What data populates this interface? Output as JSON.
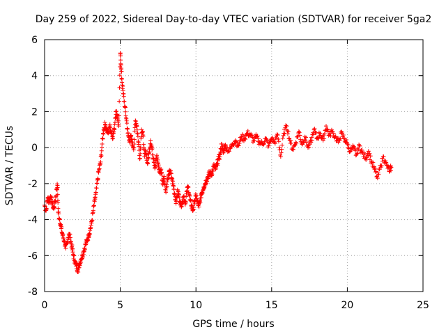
{
  "chart_data": {
    "type": "scatter",
    "title": "Day 259 of 2022, Sidereal Day-to-day VTEC variation (SDTVAR) for receiver 5ga2",
    "xlabel": "GPS time / hours",
    "ylabel": "SDTVAR / TECUs",
    "xlim": [
      0,
      25
    ],
    "ylim": [
      -8,
      6
    ],
    "xticks": [
      "0",
      "5",
      "10",
      "15",
      "20",
      "25"
    ],
    "yticks": [
      "-8",
      "-6",
      "-4",
      "-2",
      "0",
      "2",
      "4",
      "6"
    ],
    "grid": true,
    "marker": "plus",
    "color": "#ff0000",
    "series": [
      {
        "name": "SDTVAR",
        "x": [
          0.0,
          0.1,
          0.2,
          0.3,
          0.4,
          0.5,
          0.6,
          0.7,
          0.8,
          0.85,
          0.9,
          1.0,
          1.1,
          1.2,
          1.3,
          1.4,
          1.5,
          1.6,
          1.7,
          1.8,
          1.9,
          2.0,
          2.1,
          2.2,
          2.3,
          2.4,
          2.5,
          2.6,
          2.7,
          2.8,
          2.9,
          3.0,
          3.1,
          3.2,
          3.3,
          3.4,
          3.5,
          3.6,
          3.7,
          3.8,
          3.9,
          4.0,
          4.1,
          4.2,
          4.3,
          4.4,
          4.5,
          4.6,
          4.7,
          4.8,
          4.9,
          5.0,
          5.05,
          5.1,
          5.2,
          5.3,
          5.4,
          5.5,
          5.6,
          5.7,
          5.8,
          5.9,
          6.0,
          6.1,
          6.2,
          6.3,
          6.4,
          6.5,
          6.6,
          6.7,
          6.8,
          6.9,
          7.0,
          7.1,
          7.2,
          7.3,
          7.4,
          7.5,
          7.6,
          7.7,
          7.8,
          7.9,
          8.0,
          8.1,
          8.2,
          8.3,
          8.4,
          8.5,
          8.6,
          8.7,
          8.8,
          8.9,
          9.0,
          9.1,
          9.2,
          9.3,
          9.4,
          9.5,
          9.6,
          9.7,
          9.8,
          9.9,
          10.0,
          10.1,
          10.2,
          10.3,
          10.4,
          10.5,
          10.6,
          10.7,
          10.8,
          10.9,
          11.0,
          11.1,
          11.2,
          11.3,
          11.4,
          11.5,
          11.6,
          11.7,
          11.8,
          11.9,
          12.0,
          12.2,
          12.4,
          12.6,
          12.8,
          13.0,
          13.2,
          13.4,
          13.6,
          13.8,
          14.0,
          14.2,
          14.4,
          14.6,
          14.8,
          15.0,
          15.2,
          15.4,
          15.6,
          15.8,
          16.0,
          16.2,
          16.4,
          16.6,
          16.8,
          17.0,
          17.2,
          17.4,
          17.6,
          17.8,
          18.0,
          18.2,
          18.4,
          18.6,
          18.8,
          19.0,
          19.2,
          19.4,
          19.6,
          19.8,
          20.0,
          20.2,
          20.4,
          20.6,
          20.8,
          21.0,
          21.2,
          21.4,
          21.6,
          21.8,
          22.0,
          22.2,
          22.4,
          22.6,
          22.8,
          22.9
        ],
        "y": [
          -3.2,
          -3.5,
          -2.8,
          -3.0,
          -2.7,
          -3.1,
          -3.4,
          -3.0,
          -2.3,
          -2.1,
          -3.6,
          -4.0,
          -4.5,
          -4.9,
          -5.2,
          -5.6,
          -5.3,
          -4.8,
          -5.0,
          -5.5,
          -6.0,
          -6.3,
          -6.6,
          -6.8,
          -6.5,
          -6.2,
          -6.0,
          -5.7,
          -5.4,
          -5.2,
          -4.9,
          -4.6,
          -4.2,
          -3.6,
          -3.0,
          -2.5,
          -1.8,
          -1.2,
          -0.8,
          0.2,
          1.0,
          1.3,
          1.0,
          0.8,
          1.2,
          0.9,
          0.6,
          1.0,
          2.0,
          1.8,
          1.2,
          5.2,
          4.6,
          3.8,
          3.0,
          2.3,
          1.6,
          0.8,
          0.4,
          0.6,
          0.2,
          0.0,
          1.5,
          1.2,
          0.3,
          -0.6,
          1.0,
          0.7,
          -0.5,
          -0.2,
          -0.9,
          -0.3,
          0.4,
          -0.1,
          -0.6,
          -1.1,
          -0.5,
          -0.9,
          -1.4,
          -1.2,
          -2.0,
          -1.6,
          -2.4,
          -1.9,
          -1.5,
          -1.3,
          -1.7,
          -2.1,
          -2.6,
          -3.0,
          -2.4,
          -2.8,
          -3.2,
          -3.0,
          -2.7,
          -3.1,
          -2.4,
          -2.2,
          -2.9,
          -3.2,
          -3.5,
          -3.0,
          -2.7,
          -3.0,
          -3.3,
          -2.8,
          -2.5,
          -2.2,
          -2.0,
          -1.8,
          -1.6,
          -1.4,
          -1.5,
          -1.3,
          -1.0,
          -1.2,
          -0.9,
          -0.6,
          -0.4,
          0.2,
          -0.3,
          0.1,
          0.0,
          -0.2,
          0.2,
          0.4,
          0.1,
          0.6,
          0.5,
          0.8,
          0.7,
          0.4,
          0.6,
          0.3,
          0.2,
          0.5,
          0.1,
          0.5,
          0.3,
          0.7,
          -0.5,
          0.8,
          1.2,
          0.4,
          -0.1,
          0.3,
          0.9,
          0.2,
          0.6,
          0.0,
          0.3,
          1.0,
          0.5,
          0.8,
          0.4,
          1.2,
          0.7,
          0.9,
          0.6,
          0.3,
          0.8,
          0.5,
          0.2,
          -0.2,
          0.0,
          -0.4,
          0.1,
          -0.3,
          -0.6,
          -0.2,
          -0.8,
          -1.2,
          -1.7,
          -1.0,
          -0.5,
          -1.0,
          -1.3,
          -1.1
        ]
      }
    ]
  }
}
